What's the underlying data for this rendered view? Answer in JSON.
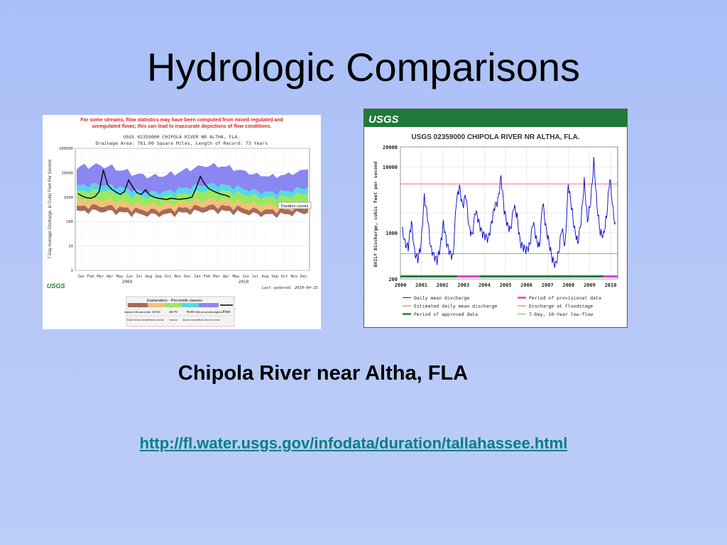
{
  "slide": {
    "title": "Hydrologic Comparisons",
    "subtitle": "Chipola River near Altha, FLA",
    "link": "http://fl.water.usgs.gov/infodata/duration/tallahassee.html"
  },
  "colors": {
    "background": "#b3c6f7",
    "link": "#008080",
    "usgs_green": "#1f7a3a",
    "band_low": "#a86a5a",
    "band_below": "#f5c07a",
    "band_normal": "#9be85f",
    "band_above": "#56d8e8",
    "band_high": "#8a86f2",
    "daily_line": "#0000cc",
    "floodstage": "#e64040",
    "lowflow": "#44bb44",
    "provisional": "#dd44cc"
  },
  "left_figure": {
    "warning": [
      "For some streams, flow statistics may have been computed from mixed regulated and",
      "unregulated flows; this can lead to inaccurate depictions of flow conditions."
    ],
    "header_line1": "USGS 02359000 CHIPOLA RIVER NR ALTHA, FLA.",
    "header_line2": "Drainage Area: 781.00 Square Miles, Length of Record: 73 Years",
    "ylabel": "7-Day Average Discharge, in Cubic Feet Per Second",
    "logo_text": "USGS",
    "last_updated": "Last updated: 2010-04-25",
    "duration_label": "Duration curves",
    "chart_data": {
      "type": "area",
      "yscale": "log",
      "ylim": [
        1,
        100000
      ],
      "yticks": [
        "100000",
        "10000",
        "1000",
        "100",
        "10",
        "1"
      ],
      "xticks": [
        "Jan",
        "Feb",
        "Mar",
        "Apr",
        "May",
        "Jun",
        "Jul",
        "Aug",
        "Sep",
        "Oct",
        "Nov",
        "Dec",
        "Jan",
        "Feb",
        "Mar",
        "Apr",
        "May",
        "Jun",
        "Jul",
        "Aug",
        "Sep",
        "Oct",
        "Nov",
        "Dec"
      ],
      "year_labels": [
        "2009",
        "2010"
      ],
      "flow": [
        1400,
        1100,
        950,
        900,
        1050,
        1700,
        13000,
        3200,
        2100,
        1600,
        1300,
        1700,
        5000,
        2500,
        1500,
        1300,
        2000,
        1200,
        1000,
        900,
        850,
        800,
        900,
        850,
        820,
        850,
        900,
        1000,
        2400,
        7000,
        3500,
        2200,
        1800,
        1500,
        1300,
        1200,
        1000
      ]
    },
    "legend": {
      "title": "Explanation - Percentile classes",
      "classes": [
        {
          "label": "lowest-10th percentile",
          "desc": "Much below normal"
        },
        {
          "label": "10-24",
          "desc": "Below normal"
        },
        {
          "label": "25-75",
          "desc": "Normal"
        },
        {
          "label": "76-90",
          "desc": "Above normal"
        },
        {
          "label": "90th percentile-highest",
          "desc": "Much above normal"
        }
      ],
      "flow_label": "Flow"
    }
  },
  "right_figure": {
    "logo_text": "USGS",
    "title": "USGS 02359000 CHIPOLA RIVER NR ALTHA, FLA.",
    "ylabel": "DAILY Discharge, cubic feet per second",
    "chart_data": {
      "type": "line",
      "yscale": "log",
      "ylim": [
        200,
        20000
      ],
      "yticks": [
        "20000",
        "10000",
        "1000",
        "200"
      ],
      "xticks": [
        "2000",
        "2001",
        "2002",
        "2003",
        "2004",
        "2005",
        "2006",
        "2007",
        "2008",
        "2009",
        "2010"
      ],
      "floodstage": 5500,
      "lowflow_7day_10yr": 480,
      "daily_mean_discharge": [
        1200,
        700,
        600,
        1500,
        500,
        400,
        650,
        3500,
        1800,
        600,
        450,
        380,
        600,
        1400,
        700,
        500,
        420,
        3000,
        5000,
        2500,
        3800,
        1200,
        900,
        2200,
        1500,
        1000,
        900,
        800,
        1400,
        2500,
        3000,
        7000,
        2200,
        1300,
        1100,
        2600,
        1800,
        700,
        600,
        550,
        650,
        1500,
        800,
        600,
        3000,
        1200,
        700,
        400,
        320,
        500,
        1200,
        600,
        5500,
        2500,
        1100,
        700,
        1500,
        6000,
        1500,
        3000,
        12000,
        2500,
        1000,
        900,
        1800,
        7000,
        2200,
        1000
      ]
    },
    "legend": [
      {
        "label": "Daily mean discharge",
        "color": "#0000cc"
      },
      {
        "label": "Period of provisional data",
        "color": "#dd44cc"
      },
      {
        "label": "Estimated daily mean discharge",
        "color": "#e64040"
      },
      {
        "label": "Discharge at floodstage",
        "color": "#e64040"
      },
      {
        "label": "Period of approved data",
        "color": "#1f7a3a"
      },
      {
        "label": "7-Day, 10-Year low-flow",
        "color": "#44bb44"
      }
    ]
  }
}
